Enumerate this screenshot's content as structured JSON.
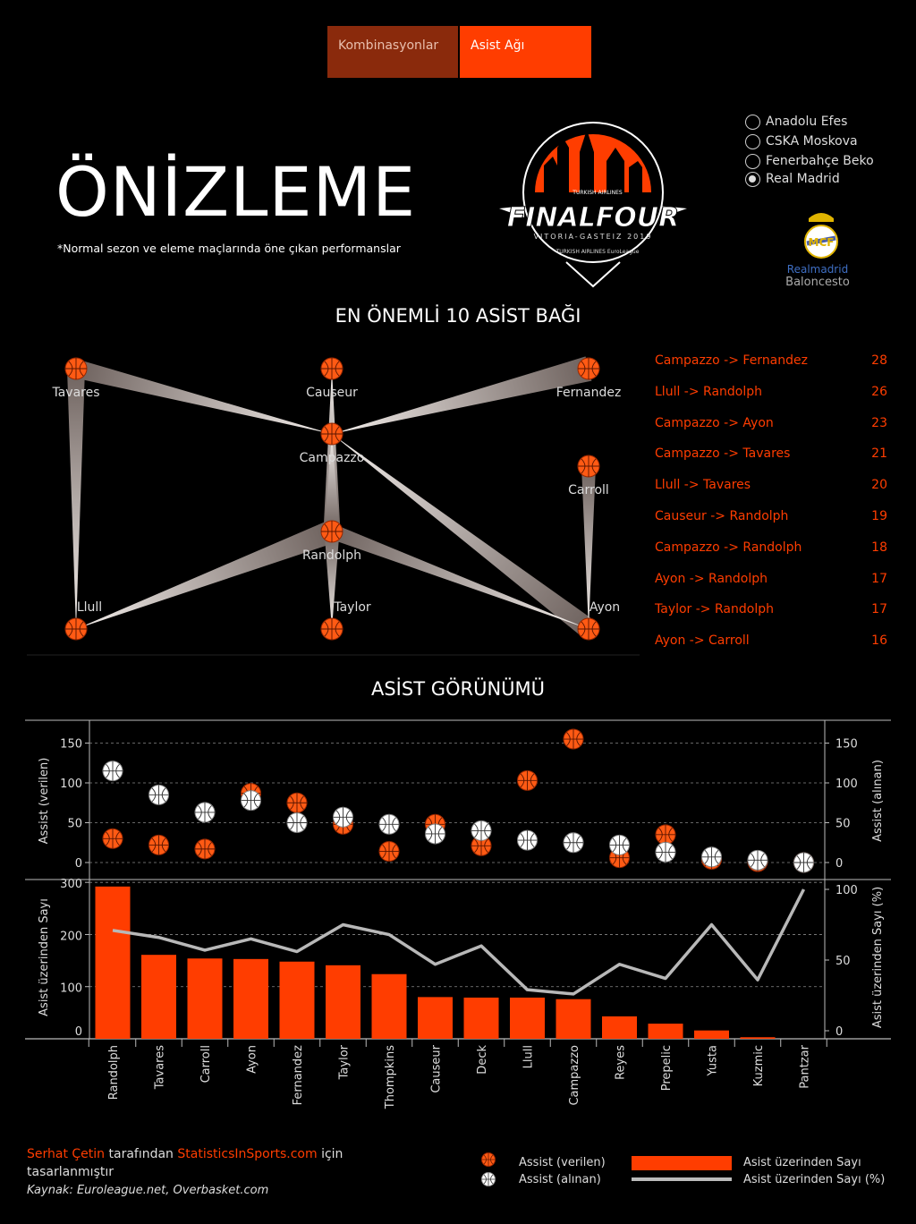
{
  "tabs": [
    {
      "label": "Kombinasyonlar"
    },
    {
      "label": "Asist Ağı"
    }
  ],
  "teams": [
    {
      "label": "Anadolu Efes",
      "selected": false
    },
    {
      "label": "CSKA Moskova",
      "selected": false
    },
    {
      "label": "Fenerbahçe Beko",
      "selected": false
    },
    {
      "label": "Real Madrid",
      "selected": true
    }
  ],
  "header": {
    "title": "ÖNİZLEME",
    "subtitle": "*Normal sezon ve eleme maçlarında öne çıkan performanslar"
  },
  "logo": {
    "main": "FINALFOUR",
    "sub": "VITORIA-GASTEIZ 2019",
    "sponsor": "TURKISH AIRLINES EuroLeague",
    "top": "TURKISH AIRLINES"
  },
  "club_logo": {
    "line1": "Realmadrid",
    "line2": "Baloncesto"
  },
  "network": {
    "title": "EN ÖNEMLİ 10 ASİST BAĞI",
    "nodes": [
      "Tavares",
      "Causeur",
      "Fernandez",
      "Campazzo",
      "Carroll",
      "Randolph",
      "Llull",
      "Taylor",
      "Ayon"
    ],
    "links": [
      {
        "label": "Campazzo -> Fernandez",
        "value": 28
      },
      {
        "label": "Llull -> Randolph",
        "value": 26
      },
      {
        "label": "Campazzo -> Ayon",
        "value": 23
      },
      {
        "label": "Campazzo -> Tavares",
        "value": 21
      },
      {
        "label": "Llull -> Tavares",
        "value": 20
      },
      {
        "label": "Causeur -> Randolph",
        "value": 19
      },
      {
        "label": "Campazzo -> Randolph",
        "value": 18
      },
      {
        "label": "Ayon -> Randolph",
        "value": 17
      },
      {
        "label": "Taylor -> Randolph",
        "value": 17
      },
      {
        "label": "Ayon -> Carroll",
        "value": 16
      }
    ]
  },
  "assist_view": {
    "title": "ASİST GÖRÜNÜMÜ"
  },
  "chart_data": [
    {
      "type": "scatter",
      "categories": [
        "Randolph",
        "Tavares",
        "Carroll",
        "Ayon",
        "Fernandez",
        "Taylor",
        "Thompkins",
        "Causeur",
        "Deck",
        "Llull",
        "Campazzo",
        "Reyes",
        "Prepelic",
        "Yusta",
        "Kuzmic",
        "Pantzar"
      ],
      "series": [
        {
          "name": "Assist (verilen)",
          "values": [
            30,
            22,
            17,
            87,
            75,
            48,
            14,
            48,
            21,
            103,
            155,
            6,
            35,
            4,
            1,
            0
          ]
        },
        {
          "name": "Assist (alınan)",
          "values": [
            115,
            85,
            63,
            78,
            50,
            57,
            48,
            36,
            40,
            28,
            25,
            22,
            13,
            7,
            3,
            0
          ]
        }
      ],
      "ylabel": "Assist (verilen)",
      "ylabel_right": "Assist (alınan)",
      "ylim": [
        -15,
        180
      ],
      "yticks": [
        0,
        50,
        100,
        150
      ]
    },
    {
      "type": "bar",
      "categories": [
        "Randolph",
        "Tavares",
        "Carroll",
        "Ayon",
        "Fernandez",
        "Taylor",
        "Thompkins",
        "Causeur",
        "Deck",
        "Llull",
        "Campazzo",
        "Reyes",
        "Prepelic",
        "Yusta",
        "Kuzmic",
        "Pantzar"
      ],
      "series": [
        {
          "name": "Asist üzerinden Sayı",
          "values": [
            292,
            161,
            154,
            153,
            148,
            141,
            124,
            80,
            79,
            79,
            76,
            43,
            29,
            16,
            3,
            0
          ]
        },
        {
          "name": "Asist üzerinden Sayı (%)",
          "values": [
            71,
            66,
            57,
            65,
            56,
            75,
            68,
            47,
            60,
            29,
            26,
            47,
            37,
            75,
            36,
            100
          ]
        }
      ],
      "ylabel": "Asist üzerinden Sayı",
      "ylabel_right": "Asist üzerinden Sayı (%)",
      "ylim": [
        0,
        300
      ],
      "yticks": [
        0,
        100,
        200,
        300
      ],
      "ylim_right": [
        0,
        100
      ],
      "yticks_right": [
        0,
        50,
        100
      ]
    }
  ],
  "legend": [
    {
      "label": "Assist (verilen)"
    },
    {
      "label": "Assist (alınan)"
    },
    {
      "label": "Asist üzerinden Sayı"
    },
    {
      "label": "Asist üzerinden Sayı (%)"
    }
  ],
  "footer": {
    "author": "Serhat Çetin",
    "text1": " tarafından ",
    "site": "StatisticsInSports.com",
    "text2": " için tasarlanmıştır",
    "source": "Kaynak: Euroleague.net, Overbasket.com"
  },
  "colors": {
    "accent": "#ff3d00",
    "dark_accent": "#8a2a0c",
    "link": "#c9bdb8",
    "background": "#000000"
  }
}
